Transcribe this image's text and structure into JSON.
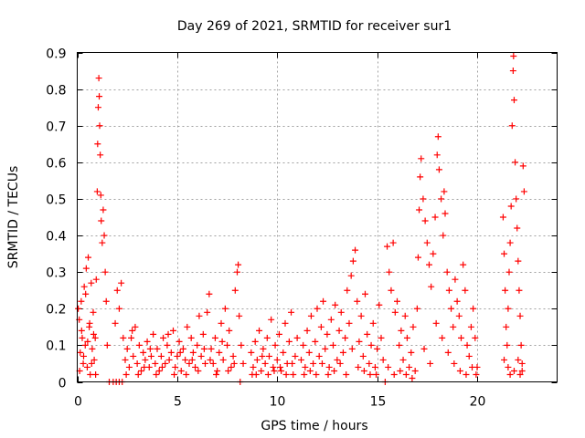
{
  "chart_data": {
    "type": "scatter",
    "title": "Day 269 of 2021, SRMTID for receiver sur1",
    "xlabel": "GPS time / hours",
    "ylabel": "SRMTID / TECUs",
    "xlim": [
      0,
      24
    ],
    "ylim": [
      0,
      0.9
    ],
    "xticks": [
      0,
      5,
      10,
      15,
      20
    ],
    "xtick_labels": [
      "0",
      "5",
      "10",
      "15",
      "20"
    ],
    "yticks": [
      0,
      0.1,
      0.2,
      0.3,
      0.4,
      0.5,
      0.6,
      0.7,
      0.8,
      0.9
    ],
    "ytick_labels": [
      "0",
      "0.1",
      "0.2",
      "0.3",
      "0.4",
      "0.5",
      "0.6",
      "0.7",
      "0.8",
      "0.9"
    ],
    "grid": true,
    "marker": "+",
    "color": "#ff0000",
    "series": [
      {
        "name": "SRMTID",
        "points": [
          [
            0.05,
            0.2
          ],
          [
            0.1,
            0.17
          ],
          [
            0.15,
            0.08
          ],
          [
            0.2,
            0.22
          ],
          [
            0.25,
            0.12
          ],
          [
            0.3,
            0.05
          ],
          [
            0.35,
            0.26
          ],
          [
            0.4,
            0.1
          ],
          [
            0.45,
            0.31
          ],
          [
            0.5,
            0.04
          ],
          [
            0.55,
            0.34
          ],
          [
            0.6,
            0.15
          ],
          [
            0.65,
            0.02
          ],
          [
            0.7,
            0.27
          ],
          [
            0.75,
            0.09
          ],
          [
            0.8,
            0.19
          ],
          [
            0.85,
            0.06
          ],
          [
            0.9,
            0.12
          ],
          [
            0.95,
            0.28
          ],
          [
            1.0,
            0.52
          ],
          [
            1.02,
            0.65
          ],
          [
            1.05,
            0.75
          ],
          [
            1.08,
            0.83
          ],
          [
            1.1,
            0.78
          ],
          [
            1.12,
            0.7
          ],
          [
            1.15,
            0.62
          ],
          [
            1.18,
            0.51
          ],
          [
            1.2,
            0.44
          ],
          [
            1.25,
            0.38
          ],
          [
            1.3,
            0.47
          ],
          [
            1.35,
            0.4
          ],
          [
            1.4,
            0.3
          ],
          [
            1.45,
            0.22
          ],
          [
            1.5,
            0.1
          ],
          [
            0.12,
            0.03
          ],
          [
            0.22,
            0.14
          ],
          [
            0.32,
            0.07
          ],
          [
            0.42,
            0.24
          ],
          [
            0.52,
            0.11
          ],
          [
            0.62,
            0.16
          ],
          [
            0.72,
            0.05
          ],
          [
            0.82,
            0.13
          ],
          [
            0.92,
            0.02
          ],
          [
            1.6,
            0.0
          ],
          [
            1.8,
            0.0
          ],
          [
            1.95,
            0.0
          ],
          [
            2.1,
            0.0
          ],
          [
            2.25,
            0.0
          ],
          [
            1.9,
            0.16
          ],
          [
            2.0,
            0.25
          ],
          [
            2.1,
            0.2
          ],
          [
            2.2,
            0.27
          ],
          [
            2.3,
            0.12
          ],
          [
            2.4,
            0.06
          ],
          [
            2.5,
            0.09
          ],
          [
            2.6,
            0.04
          ],
          [
            2.7,
            0.12
          ],
          [
            2.8,
            0.07
          ],
          [
            2.9,
            0.15
          ],
          [
            3.0,
            0.05
          ],
          [
            3.1,
            0.1
          ],
          [
            3.2,
            0.03
          ],
          [
            3.3,
            0.08
          ],
          [
            3.4,
            0.06
          ],
          [
            3.5,
            0.11
          ],
          [
            3.6,
            0.04
          ],
          [
            3.7,
            0.07
          ],
          [
            3.8,
            0.13
          ],
          [
            3.9,
            0.05
          ],
          [
            4.0,
            0.09
          ],
          [
            4.1,
            0.03
          ],
          [
            4.2,
            0.07
          ],
          [
            4.3,
            0.12
          ],
          [
            4.4,
            0.05
          ],
          [
            4.5,
            0.1
          ],
          [
            4.6,
            0.06
          ],
          [
            4.7,
            0.08
          ],
          [
            4.8,
            0.14
          ],
          [
            4.9,
            0.04
          ],
          [
            5.0,
            0.07
          ],
          [
            5.1,
            0.11
          ],
          [
            5.2,
            0.03
          ],
          [
            5.3,
            0.09
          ],
          [
            5.4,
            0.06
          ],
          [
            5.5,
            0.15
          ],
          [
            5.6,
            0.05
          ],
          [
            5.7,
            0.12
          ],
          [
            5.8,
            0.08
          ],
          [
            5.9,
            0.04
          ],
          [
            6.0,
            0.1
          ],
          [
            6.1,
            0.18
          ],
          [
            6.2,
            0.07
          ],
          [
            6.3,
            0.13
          ],
          [
            6.4,
            0.05
          ],
          [
            6.5,
            0.19
          ],
          [
            6.6,
            0.24
          ],
          [
            6.7,
            0.09
          ],
          [
            6.8,
            0.05
          ],
          [
            6.9,
            0.12
          ],
          [
            7.0,
            0.03
          ],
          [
            7.1,
            0.08
          ],
          [
            7.2,
            0.16
          ],
          [
            7.3,
            0.06
          ],
          [
            7.4,
            0.2
          ],
          [
            7.5,
            0.1
          ],
          [
            7.6,
            0.14
          ],
          [
            7.7,
            0.04
          ],
          [
            7.8,
            0.07
          ],
          [
            7.9,
            0.25
          ],
          [
            8.0,
            0.3
          ],
          [
            8.05,
            0.32
          ],
          [
            8.1,
            0.18
          ],
          [
            8.2,
            0.1
          ],
          [
            8.3,
            0.05
          ],
          [
            2.45,
            0.02
          ],
          [
            2.75,
            0.14
          ],
          [
            3.05,
            0.02
          ],
          [
            3.35,
            0.04
          ],
          [
            3.65,
            0.09
          ],
          [
            3.95,
            0.02
          ],
          [
            4.25,
            0.04
          ],
          [
            4.55,
            0.13
          ],
          [
            4.85,
            0.02
          ],
          [
            5.15,
            0.08
          ],
          [
            5.45,
            0.02
          ],
          [
            5.75,
            0.06
          ],
          [
            6.05,
            0.03
          ],
          [
            6.35,
            0.09
          ],
          [
            6.65,
            0.06
          ],
          [
            6.95,
            0.02
          ],
          [
            7.25,
            0.11
          ],
          [
            7.55,
            0.03
          ],
          [
            7.85,
            0.05
          ],
          [
            8.15,
            0.0
          ],
          [
            8.7,
            0.08
          ],
          [
            8.8,
            0.04
          ],
          [
            8.9,
            0.11
          ],
          [
            9.0,
            0.06
          ],
          [
            9.1,
            0.14
          ],
          [
            9.2,
            0.03
          ],
          [
            9.3,
            0.09
          ],
          [
            9.4,
            0.05
          ],
          [
            9.5,
            0.12
          ],
          [
            9.6,
            0.07
          ],
          [
            9.7,
            0.17
          ],
          [
            9.8,
            0.04
          ],
          [
            9.9,
            0.1
          ],
          [
            10.0,
            0.06
          ],
          [
            10.1,
            0.13
          ],
          [
            10.2,
            0.03
          ],
          [
            10.3,
            0.08
          ],
          [
            10.4,
            0.16
          ],
          [
            10.5,
            0.05
          ],
          [
            10.6,
            0.11
          ],
          [
            10.7,
            0.19
          ],
          [
            10.8,
            0.02
          ],
          [
            10.9,
            0.07
          ],
          [
            11.0,
            0.12
          ],
          [
            8.75,
            0.02
          ],
          [
            8.95,
            0.02
          ],
          [
            9.25,
            0.07
          ],
          [
            9.55,
            0.02
          ],
          [
            9.85,
            0.03
          ],
          [
            10.15,
            0.04
          ],
          [
            10.45,
            0.02
          ],
          [
            10.75,
            0.05
          ],
          [
            11.2,
            0.06
          ],
          [
            11.3,
            0.1
          ],
          [
            11.4,
            0.04
          ],
          [
            11.5,
            0.14
          ],
          [
            11.6,
            0.08
          ],
          [
            11.7,
            0.18
          ],
          [
            11.8,
            0.05
          ],
          [
            11.9,
            0.11
          ],
          [
            12.0,
            0.2
          ],
          [
            12.1,
            0.07
          ],
          [
            12.2,
            0.15
          ],
          [
            12.3,
            0.22
          ],
          [
            12.4,
            0.09
          ],
          [
            12.5,
            0.13
          ],
          [
            12.6,
            0.04
          ],
          [
            12.7,
            0.17
          ],
          [
            12.8,
            0.1
          ],
          [
            12.9,
            0.21
          ],
          [
            13.0,
            0.06
          ],
          [
            13.1,
            0.14
          ],
          [
            13.2,
            0.19
          ],
          [
            13.3,
            0.08
          ],
          [
            13.4,
            0.12
          ],
          [
            13.5,
            0.25
          ],
          [
            13.6,
            0.16
          ],
          [
            13.7,
            0.29
          ],
          [
            13.8,
            0.33
          ],
          [
            13.9,
            0.36
          ],
          [
            14.0,
            0.22
          ],
          [
            14.1,
            0.11
          ],
          [
            14.2,
            0.18
          ],
          [
            14.3,
            0.07
          ],
          [
            14.4,
            0.24
          ],
          [
            14.5,
            0.13
          ],
          [
            14.6,
            0.05
          ],
          [
            14.7,
            0.1
          ],
          [
            14.8,
            0.16
          ],
          [
            14.9,
            0.04
          ],
          [
            15.0,
            0.09
          ],
          [
            15.1,
            0.21
          ],
          [
            15.2,
            0.12
          ],
          [
            15.3,
            0.06
          ],
          [
            11.35,
            0.02
          ],
          [
            11.65,
            0.03
          ],
          [
            11.95,
            0.02
          ],
          [
            12.25,
            0.05
          ],
          [
            12.55,
            0.02
          ],
          [
            12.85,
            0.03
          ],
          [
            13.15,
            0.05
          ],
          [
            13.45,
            0.02
          ],
          [
            13.75,
            0.09
          ],
          [
            14.05,
            0.04
          ],
          [
            14.35,
            0.03
          ],
          [
            14.65,
            0.02
          ],
          [
            14.95,
            0.02
          ],
          [
            15.4,
            0.0
          ],
          [
            15.5,
            0.37
          ],
          [
            15.6,
            0.3
          ],
          [
            15.7,
            0.25
          ],
          [
            15.8,
            0.38
          ],
          [
            15.9,
            0.19
          ],
          [
            16.0,
            0.22
          ],
          [
            16.1,
            0.1
          ],
          [
            16.2,
            0.14
          ],
          [
            16.3,
            0.06
          ],
          [
            16.4,
            0.18
          ],
          [
            16.5,
            0.12
          ],
          [
            16.6,
            0.04
          ],
          [
            16.7,
            0.08
          ],
          [
            16.8,
            0.15
          ],
          [
            16.9,
            0.03
          ],
          [
            17.0,
            0.2
          ],
          [
            17.05,
            0.34
          ],
          [
            17.1,
            0.47
          ],
          [
            17.15,
            0.56
          ],
          [
            17.2,
            0.61
          ],
          [
            17.3,
            0.5
          ],
          [
            17.4,
            0.44
          ],
          [
            17.5,
            0.38
          ],
          [
            17.6,
            0.32
          ],
          [
            17.7,
            0.26
          ],
          [
            17.8,
            0.35
          ],
          [
            17.9,
            0.45
          ],
          [
            18.0,
            0.62
          ],
          [
            18.05,
            0.67
          ],
          [
            18.1,
            0.58
          ],
          [
            18.2,
            0.5
          ],
          [
            18.3,
            0.4
          ],
          [
            18.35,
            0.52
          ],
          [
            18.4,
            0.46
          ],
          [
            18.5,
            0.3
          ],
          [
            18.6,
            0.25
          ],
          [
            18.7,
            0.2
          ],
          [
            18.8,
            0.15
          ],
          [
            18.9,
            0.28
          ],
          [
            19.0,
            0.22
          ],
          [
            19.1,
            0.18
          ],
          [
            19.2,
            0.12
          ],
          [
            19.3,
            0.32
          ],
          [
            19.4,
            0.25
          ],
          [
            19.5,
            0.1
          ],
          [
            19.6,
            0.07
          ],
          [
            19.7,
            0.15
          ],
          [
            19.8,
            0.2
          ],
          [
            19.9,
            0.12
          ],
          [
            20.0,
            0.04
          ],
          [
            15.55,
            0.04
          ],
          [
            15.85,
            0.02
          ],
          [
            16.15,
            0.03
          ],
          [
            16.45,
            0.02
          ],
          [
            16.75,
            0.01
          ],
          [
            17.35,
            0.09
          ],
          [
            17.65,
            0.05
          ],
          [
            17.95,
            0.16
          ],
          [
            18.25,
            0.12
          ],
          [
            18.55,
            0.08
          ],
          [
            18.85,
            0.05
          ],
          [
            19.15,
            0.03
          ],
          [
            19.45,
            0.02
          ],
          [
            19.75,
            0.04
          ],
          [
            19.95,
            0.02
          ],
          [
            21.3,
            0.45
          ],
          [
            21.35,
            0.35
          ],
          [
            21.4,
            0.25
          ],
          [
            21.45,
            0.15
          ],
          [
            21.5,
            0.1
          ],
          [
            21.55,
            0.2
          ],
          [
            21.6,
            0.3
          ],
          [
            21.65,
            0.38
          ],
          [
            21.7,
            0.48
          ],
          [
            21.75,
            0.7
          ],
          [
            21.8,
            0.85
          ],
          [
            21.82,
            0.89
          ],
          [
            21.85,
            0.77
          ],
          [
            21.9,
            0.6
          ],
          [
            21.95,
            0.5
          ],
          [
            22.0,
            0.42
          ],
          [
            22.05,
            0.33
          ],
          [
            22.1,
            0.25
          ],
          [
            22.15,
            0.18
          ],
          [
            22.2,
            0.1
          ],
          [
            22.25,
            0.05
          ],
          [
            22.3,
            0.59
          ],
          [
            22.35,
            0.52
          ],
          [
            21.35,
            0.06
          ],
          [
            21.55,
            0.04
          ],
          [
            21.65,
            0.02
          ],
          [
            21.85,
            0.03
          ],
          [
            22.05,
            0.06
          ],
          [
            22.15,
            0.02
          ],
          [
            22.25,
            0.03
          ]
        ]
      }
    ]
  }
}
